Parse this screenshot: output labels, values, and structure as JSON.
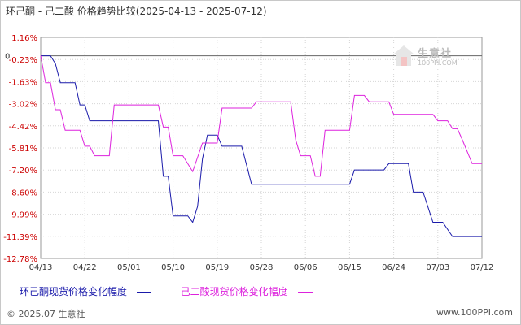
{
  "header": {
    "title": "环己酮 - 己二酸 价格趋势比较(2025-04-13 - 2025-07-12)"
  },
  "chart_data": {
    "type": "line",
    "title": "环己酮 - 己二酸 价格趋势比较(2025-04-13 - 2025-07-12)",
    "xlabel": "",
    "ylabel": "",
    "x_start": "2025-04-13",
    "x_end": "2025-07-12",
    "x_ticks": [
      "04/13",
      "04/22",
      "05/01",
      "05/10",
      "05/19",
      "05/28",
      "06/06",
      "06/15",
      "06/24",
      "07/03",
      "07/12"
    ],
    "y_ticks": [
      "1.16%",
      "-0.23%",
      "-1.63%",
      "-3.02%",
      "-4.42%",
      "-5.81%",
      "-7.20%",
      "-8.60%",
      "-9.99%",
      "-11.39%",
      "-12.78%"
    ],
    "ylim": [
      -12.78,
      1.16
    ],
    "zero_label": "0",
    "grid": true,
    "legend_position": "bottom",
    "series": [
      {
        "name": "环己酮现货价格变化幅度",
        "color": "#1a1aaa",
        "points": [
          [
            "2025-04-13",
            0
          ],
          [
            "2025-04-15",
            0
          ],
          [
            "2025-04-16",
            -0.5
          ],
          [
            "2025-04-17",
            -1.7
          ],
          [
            "2025-04-20",
            -1.7
          ],
          [
            "2025-04-21",
            -3.1
          ],
          [
            "2025-04-22",
            -3.1
          ],
          [
            "2025-04-23",
            -4.1
          ],
          [
            "2025-05-07",
            -4.1
          ],
          [
            "2025-05-08",
            -7.6
          ],
          [
            "2025-05-09",
            -7.6
          ],
          [
            "2025-05-10",
            -10.1
          ],
          [
            "2025-05-13",
            -10.1
          ],
          [
            "2025-05-14",
            -10.5
          ],
          [
            "2025-05-15",
            -9.5
          ],
          [
            "2025-05-16",
            -6.5
          ],
          [
            "2025-05-17",
            -5.0
          ],
          [
            "2025-05-19",
            -5.0
          ],
          [
            "2025-05-20",
            -5.7
          ],
          [
            "2025-05-24",
            -5.7
          ],
          [
            "2025-05-26",
            -8.1
          ],
          [
            "2025-06-15",
            -8.1
          ],
          [
            "2025-06-16",
            -7.2
          ],
          [
            "2025-06-22",
            -7.2
          ],
          [
            "2025-06-23",
            -6.8
          ],
          [
            "2025-06-27",
            -6.8
          ],
          [
            "2025-06-28",
            -8.6
          ],
          [
            "2025-06-30",
            -8.6
          ],
          [
            "2025-07-02",
            -10.5
          ],
          [
            "2025-07-04",
            -10.5
          ],
          [
            "2025-07-06",
            -11.4
          ],
          [
            "2025-07-12",
            -11.4
          ]
        ]
      },
      {
        "name": "己二酸现货价格变化幅度",
        "color": "#dd22dd",
        "points": [
          [
            "2025-04-13",
            0
          ],
          [
            "2025-04-14",
            -1.7
          ],
          [
            "2025-04-15",
            -1.7
          ],
          [
            "2025-04-16",
            -3.4
          ],
          [
            "2025-04-17",
            -3.4
          ],
          [
            "2025-04-18",
            -4.7
          ],
          [
            "2025-04-21",
            -4.7
          ],
          [
            "2025-04-22",
            -5.7
          ],
          [
            "2025-04-23",
            -5.7
          ],
          [
            "2025-04-24",
            -6.3
          ],
          [
            "2025-04-27",
            -6.3
          ],
          [
            "2025-04-28",
            -3.1
          ],
          [
            "2025-05-07",
            -3.1
          ],
          [
            "2025-05-08",
            -4.5
          ],
          [
            "2025-05-09",
            -4.5
          ],
          [
            "2025-05-10",
            -6.3
          ],
          [
            "2025-05-12",
            -6.3
          ],
          [
            "2025-05-14",
            -7.3
          ],
          [
            "2025-05-16",
            -5.5
          ],
          [
            "2025-05-19",
            -5.5
          ],
          [
            "2025-05-20",
            -3.3
          ],
          [
            "2025-05-26",
            -3.3
          ],
          [
            "2025-05-27",
            -2.9
          ],
          [
            "2025-06-03",
            -2.9
          ],
          [
            "2025-06-04",
            -5.3
          ],
          [
            "2025-06-05",
            -6.3
          ],
          [
            "2025-06-07",
            -6.3
          ],
          [
            "2025-06-08",
            -7.6
          ],
          [
            "2025-06-09",
            -7.6
          ],
          [
            "2025-06-10",
            -4.7
          ],
          [
            "2025-06-15",
            -4.7
          ],
          [
            "2025-06-16",
            -2.5
          ],
          [
            "2025-06-18",
            -2.5
          ],
          [
            "2025-06-19",
            -2.9
          ],
          [
            "2025-06-23",
            -2.9
          ],
          [
            "2025-06-24",
            -3.7
          ],
          [
            "2025-07-02",
            -3.7
          ],
          [
            "2025-07-03",
            -4.1
          ],
          [
            "2025-07-05",
            -4.1
          ],
          [
            "2025-07-06",
            -4.6
          ],
          [
            "2025-07-07",
            -4.6
          ],
          [
            "2025-07-08",
            -5.3
          ],
          [
            "2025-07-10",
            -6.8
          ],
          [
            "2025-07-12",
            -6.8
          ]
        ]
      }
    ]
  },
  "legend": {
    "items": [
      {
        "label": "环己酮现货价格变化幅度",
        "color": "#1a1aaa"
      },
      {
        "label": "己二酸现货价格变化幅度",
        "color": "#dd22dd"
      }
    ]
  },
  "footer": {
    "copyright": "© 2025.07 生意社",
    "url": "www.100PPI.com"
  },
  "watermark": {
    "name": "生意社",
    "url": "100PPI.COM"
  }
}
